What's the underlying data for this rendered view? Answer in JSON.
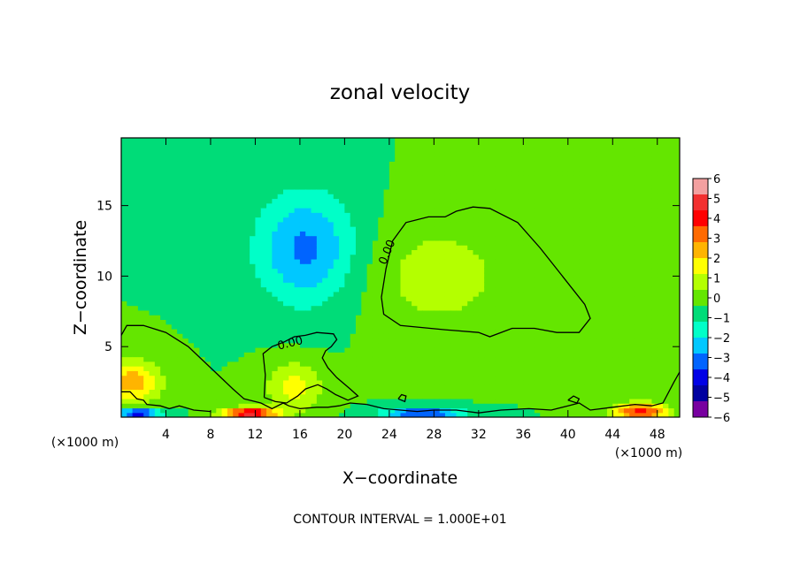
{
  "chart_data": {
    "type": "heatmap",
    "title": "zonal velocity",
    "xlabel": "X−coordinate",
    "ylabel": "Z−coordinate",
    "x_unit_left": "(×1000 m)",
    "x_unit_right": "(×1000 m)",
    "footer": "CONTOUR INTERVAL = 1.000E+01",
    "xlim": [
      0,
      50
    ],
    "ylim": [
      0,
      19.8
    ],
    "x_ticks": [
      4,
      8,
      12,
      16,
      20,
      24,
      28,
      32,
      36,
      40,
      44,
      48
    ],
    "x_tick_labels": [
      "4",
      "8",
      "12",
      "16",
      "20",
      "24",
      "28",
      "32",
      "36",
      "40",
      "44",
      "48"
    ],
    "y_ticks": [
      5,
      10,
      15
    ],
    "y_tick_labels": [
      "5",
      "10",
      "15"
    ],
    "colorbar": {
      "min": -6,
      "max": 6,
      "ticks": [
        6,
        5,
        4,
        3,
        2,
        1,
        0,
        -1,
        -2,
        -3,
        -4,
        -5,
        -6
      ],
      "tick_labels": [
        "6",
        "5",
        "4",
        "3",
        "2",
        "1",
        "0",
        "−1",
        "−2",
        "−3",
        "−4",
        "−5",
        "−6"
      ],
      "colors": [
        "#f3a0a0",
        "#f23030",
        "#ff0000",
        "#ff6a00",
        "#ffb400",
        "#ffff00",
        "#b4ff00",
        "#64e600",
        "#00dc78",
        "#00ffc8",
        "#00c8ff",
        "#0064ff",
        "#0000e6",
        "#0000a0",
        "#7800a0"
      ]
    },
    "contour_label": "0.00",
    "background_value": -0.4,
    "features": [
      {
        "kind": "blob",
        "cx": 16.5,
        "cz": 12,
        "rx": 4.5,
        "rz": 4.0,
        "value": -3.0
      },
      {
        "kind": "blob",
        "cx": 28.5,
        "cz": 10,
        "rx": 6.5,
        "rz": 4.0,
        "value": 0.8
      },
      {
        "kind": "blob",
        "cx": 15.5,
        "cz": 2.2,
        "rx": 2.5,
        "rz": 1.8,
        "value": 1.5
      },
      {
        "kind": "blob",
        "cx": 1.0,
        "cz": 2.5,
        "rx": 2.5,
        "rz": 1.5,
        "value": 2.5
      },
      {
        "kind": "blob",
        "cx": 11.5,
        "cz": 0.3,
        "rx": 2.5,
        "rz": 0.4,
        "value": 5.0
      },
      {
        "kind": "blob",
        "cx": 1.5,
        "cz": 0.3,
        "rx": 2.0,
        "rz": 0.4,
        "value": -4.5
      },
      {
        "kind": "blob",
        "cx": 27.0,
        "cz": 0.3,
        "rx": 3.5,
        "rz": 0.4,
        "value": -4.0
      },
      {
        "kind": "blob",
        "cx": 46.5,
        "cz": 0.4,
        "rx": 2.5,
        "rz": 0.6,
        "value": 4.0
      }
    ],
    "contours": [
      {
        "label": "0.00",
        "points": [
          [
            23.3,
            8.5
          ],
          [
            23.7,
            10.5
          ],
          [
            24.3,
            12.5
          ],
          [
            25.5,
            13.8
          ],
          [
            27.5,
            14.2
          ],
          [
            29.0,
            14.2
          ],
          [
            30.0,
            14.6
          ],
          [
            31.5,
            14.9
          ],
          [
            33.0,
            14.8
          ],
          [
            35.5,
            13.8
          ],
          [
            37.5,
            12.0
          ],
          [
            39.5,
            10.0
          ],
          [
            41.5,
            8.0
          ],
          [
            42.0,
            7.0
          ],
          [
            41.0,
            6.0
          ],
          [
            39.0,
            6.0
          ],
          [
            37.0,
            6.3
          ],
          [
            35.0,
            6.3
          ],
          [
            33.0,
            5.7
          ],
          [
            32.0,
            6.0
          ],
          [
            29.0,
            6.2
          ],
          [
            25.0,
            6.5
          ],
          [
            23.5,
            7.3
          ],
          [
            23.3,
            8.5
          ]
        ]
      },
      {
        "label": "0.00",
        "points": [
          [
            0,
            5.8
          ],
          [
            0.5,
            6.5
          ],
          [
            2.0,
            6.5
          ],
          [
            4.0,
            6.0
          ],
          [
            6.0,
            5.0
          ],
          [
            8.0,
            3.5
          ],
          [
            10.0,
            2.0
          ],
          [
            11.0,
            1.3
          ],
          [
            12.5,
            1.0
          ],
          [
            13.5,
            0.6
          ],
          [
            14.5,
            1.0
          ],
          [
            15.0,
            0.8
          ],
          [
            16.0,
            0.6
          ],
          [
            17.5,
            0.7
          ],
          [
            18.5,
            0.7
          ],
          [
            19.5,
            0.8
          ],
          [
            20.5,
            1.0
          ],
          [
            22.0,
            0.9
          ]
        ]
      },
      {
        "label": "",
        "points": [
          [
            12.8,
            1.4
          ],
          [
            12.9,
            3.0
          ],
          [
            12.7,
            4.5
          ],
          [
            13.5,
            5.0
          ],
          [
            14.5,
            5.3
          ],
          [
            15.5,
            5.7
          ],
          [
            16.5,
            5.8
          ],
          [
            17.5,
            6.0
          ],
          [
            19.0,
            5.9
          ],
          [
            19.3,
            5.5
          ],
          [
            18.8,
            5.0
          ],
          [
            18.3,
            4.7
          ],
          [
            18.0,
            4.2
          ],
          [
            18.5,
            3.5
          ],
          [
            19.3,
            2.8
          ],
          [
            20.5,
            2.0
          ],
          [
            21.2,
            1.5
          ],
          [
            20.3,
            1.2
          ],
          [
            19.2,
            1.6
          ],
          [
            18.4,
            2.0
          ],
          [
            17.6,
            2.3
          ],
          [
            16.5,
            2.0
          ],
          [
            15.8,
            1.5
          ],
          [
            14.8,
            1.0
          ],
          [
            13.8,
            1.1
          ],
          [
            12.8,
            1.4
          ]
        ]
      },
      {
        "label": "",
        "points": [
          [
            22.0,
            0.9
          ],
          [
            23.5,
            0.6
          ],
          [
            25.0,
            0.5
          ],
          [
            26.5,
            0.4
          ],
          [
            28.0,
            0.5
          ],
          [
            30.0,
            0.5
          ],
          [
            32.0,
            0.3
          ],
          [
            34.0,
            0.5
          ],
          [
            36.5,
            0.6
          ],
          [
            38.5,
            0.5
          ],
          [
            40.0,
            0.8
          ],
          [
            41.0,
            1.0
          ],
          [
            42.0,
            0.5
          ],
          [
            44.0,
            0.7
          ],
          [
            46.0,
            0.9
          ],
          [
            47.5,
            0.8
          ],
          [
            48.5,
            1.0
          ],
          [
            49.5,
            2.5
          ],
          [
            50,
            3.2
          ]
        ]
      },
      {
        "label": "",
        "points": [
          [
            0,
            1.8
          ],
          [
            0.8,
            1.8
          ],
          [
            1.4,
            1.3
          ],
          [
            2.0,
            1.2
          ],
          [
            2.3,
            0.9
          ],
          [
            3.5,
            0.8
          ],
          [
            4.3,
            0.6
          ],
          [
            5.2,
            0.8
          ],
          [
            6.5,
            0.5
          ],
          [
            8.0,
            0.4
          ]
        ]
      },
      {
        "label": "",
        "points": [
          [
            24.8,
            1.3
          ],
          [
            25.1,
            1.6
          ],
          [
            25.5,
            1.5
          ],
          [
            25.4,
            1.1
          ],
          [
            24.8,
            1.3
          ]
        ]
      },
      {
        "label": "",
        "points": [
          [
            40.0,
            1.2
          ],
          [
            40.5,
            1.5
          ],
          [
            41.0,
            1.3
          ],
          [
            40.8,
            1.0
          ],
          [
            40.0,
            1.2
          ]
        ]
      }
    ]
  }
}
